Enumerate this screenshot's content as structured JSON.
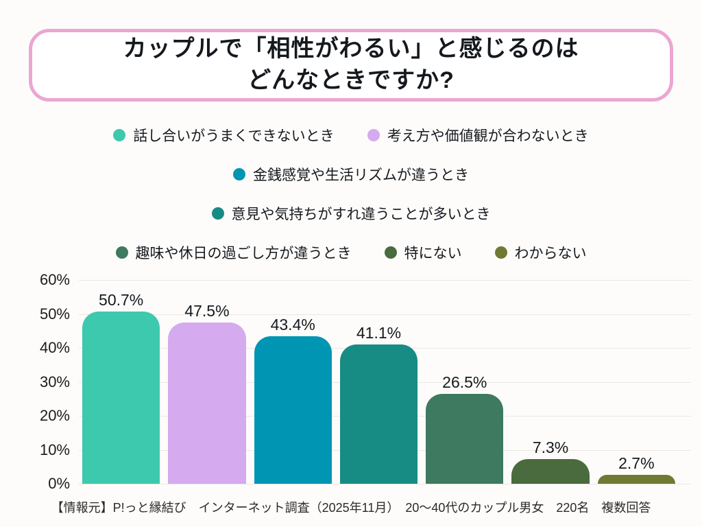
{
  "title": {
    "line1": "カップルで「相性がわるい」と感じるのは",
    "line2": "どんなときですか?"
  },
  "legend": {
    "items": [
      {
        "label": "話し合いがうまくできないとき",
        "color": "#3dc9ae"
      },
      {
        "label": "考え方や価値観が合わないとき",
        "color": "#d5aaee"
      },
      {
        "label": "金銭感覚や生活リズムが違うとき",
        "color": "#0095b3"
      },
      {
        "label": "意見や気持ちがすれ違うことが多いとき",
        "color": "#178c85"
      },
      {
        "label": "趣味や休日の過ごし方が違うとき",
        "color": "#3d7a60"
      },
      {
        "label": "特にない",
        "color": "#4a6b3d"
      },
      {
        "label": "わからない",
        "color": "#6f7a33"
      }
    ]
  },
  "chart_data": {
    "type": "bar",
    "title": "カップルで「相性がわるい」と感じるのは どんなときですか?",
    "categories": [
      "話し合いがうまくできないとき",
      "考え方や価値観が合わないとき",
      "金銭感覚や生活リズムが違うとき",
      "意見や気持ちがすれ違うことが多いとき",
      "趣味や休日の過ごし方が違うとき",
      "特にない",
      "わからない"
    ],
    "values": [
      50.7,
      47.5,
      43.4,
      41.1,
      26.5,
      7.3,
      2.7
    ],
    "value_labels": [
      "50.7%",
      "47.5%",
      "43.4%",
      "41.1%",
      "26.5%",
      "7.3%",
      "2.7%"
    ],
    "colors": [
      "#3dc9ae",
      "#d5aaee",
      "#0095b3",
      "#178c85",
      "#3d7a60",
      "#4a6b3d",
      "#6f7a33"
    ],
    "xlabel": "",
    "ylabel": "",
    "ylim": [
      0,
      60
    ],
    "yticks": [
      {
        "value": 60,
        "label": "60%"
      },
      {
        "value": 50,
        "label": "50%"
      },
      {
        "value": 40,
        "label": "40%"
      },
      {
        "value": 30,
        "label": "30%"
      },
      {
        "value": 20,
        "label": "20%"
      },
      {
        "value": 10,
        "label": "10%"
      },
      {
        "value": 0,
        "label": "0%"
      }
    ],
    "grid": true,
    "legend_position": "top"
  },
  "footer": {
    "text": "【情報元】P!っと縁結び　インターネット調査（2025年11月）　20〜40代のカップル男女　220名　複数回答"
  }
}
